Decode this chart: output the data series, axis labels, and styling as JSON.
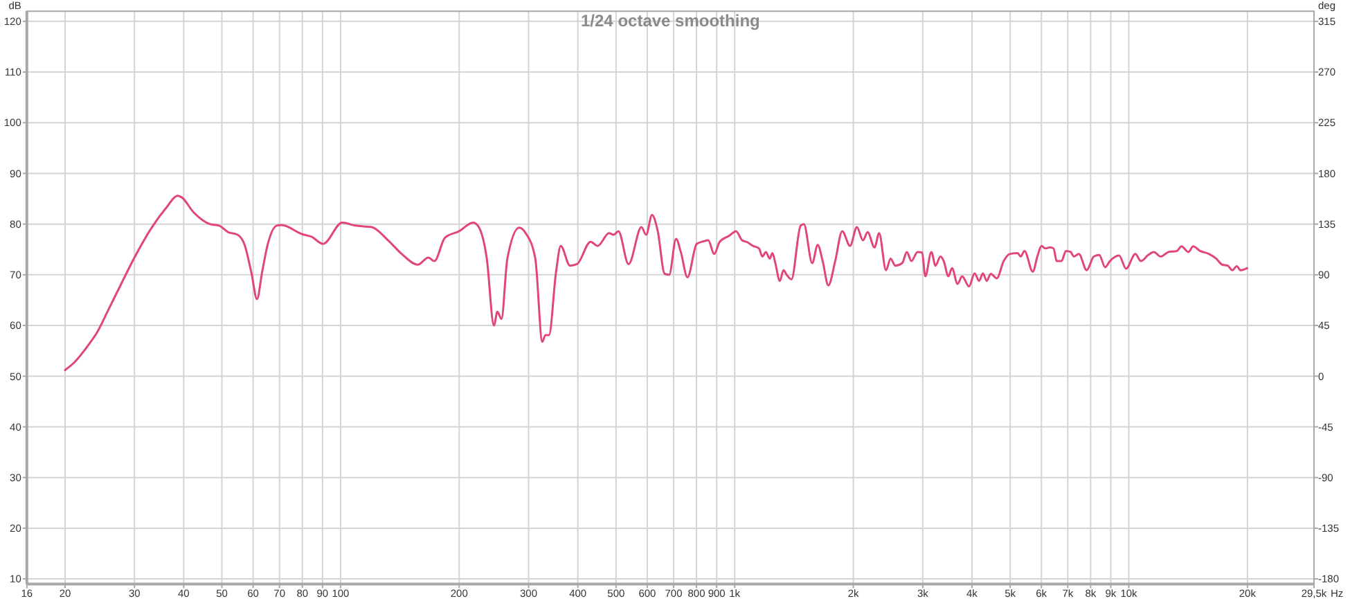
{
  "chart_data": {
    "type": "line",
    "title": "1/24 octave smoothing",
    "xlabel": "Hz",
    "ylabel": "dB",
    "y2label": "deg",
    "log": "x",
    "grid": true,
    "marker": "none",
    "line_style": "solid",
    "xlim": [
      16,
      29500
    ],
    "ylim": [
      9,
      122
    ],
    "y2lim": [
      -184.5,
      324
    ],
    "xticks": [
      16,
      20,
      30,
      40,
      50,
      60,
      70,
      80,
      90,
      100,
      200,
      300,
      400,
      500,
      600,
      700,
      800,
      900,
      {
        "value": 1000,
        "label": "1k"
      },
      {
        "value": 2000,
        "label": "2k"
      },
      {
        "value": 3000,
        "label": "3k"
      },
      {
        "value": 4000,
        "label": "4k"
      },
      {
        "value": 5000,
        "label": "5k"
      },
      {
        "value": 6000,
        "label": "6k"
      },
      {
        "value": 7000,
        "label": "7k"
      },
      {
        "value": 8000,
        "label": "8k"
      },
      {
        "value": 9000,
        "label": "9k"
      },
      {
        "value": 10000,
        "label": "10k"
      },
      {
        "value": 20000,
        "label": "20k"
      },
      {
        "value": 29500,
        "label": "29,5k"
      }
    ],
    "yticks": [
      10,
      20,
      30,
      40,
      50,
      60,
      70,
      80,
      90,
      100,
      110,
      120
    ],
    "y2ticks": [
      -180,
      -135,
      -90,
      -45,
      0,
      45,
      90,
      135,
      180,
      225,
      270,
      315
    ],
    "series": [
      {
        "color": "#e0457b",
        "x": [
          20,
          21.1,
          22.8,
          24.1,
          25.8,
          27.2,
          29.9,
          33.3,
          36.1,
          38.6,
          39.5,
          42.4,
          46.6,
          49.2,
          51.9,
          54.8,
          57.1,
          59.4,
          61.4,
          63.2,
          65.3,
          68.9,
          70.8,
          80,
          84.4,
          90.3,
          101,
          109,
          120,
          132,
          143,
          157,
          167,
          173,
          184,
          200,
          217,
          223,
          235,
          245,
          250,
          256,
          265,
          284,
          295,
          312,
          325,
          331,
          338,
          352,
          362,
          382,
          398,
          431,
          449,
          480,
          493,
          507,
          538,
          580,
          596,
          617,
          638,
          664,
          682,
          710,
          730,
          759,
          801,
          834,
          857,
          887,
          916,
          968,
          1008,
          1044,
          1078,
          1113,
          1153,
          1175,
          1200,
          1227,
          1247,
          1268,
          1302,
          1330,
          1355,
          1393,
          1470,
          1498,
          1573,
          1624,
          1672,
          1728,
          1799,
          1874,
          1962,
          2042,
          2116,
          2174,
          2264,
          2325,
          2421,
          2486,
          2556,
          2661,
          2734,
          2808,
          2910,
          2989,
          3045,
          3155,
          3232,
          3327,
          3392,
          3484,
          3560,
          3677,
          3776,
          3932,
          4061,
          4171,
          4264,
          4358,
          4465,
          4624,
          4814,
          4985,
          5220,
          5318,
          5436,
          5707,
          5860,
          6004,
          6137,
          6302,
          6440,
          6562,
          6745,
          6928,
          7115,
          7254,
          7468,
          7820,
          8148,
          8414,
          8710,
          8954,
          9448,
          9840,
          10390,
          10730,
          11200,
          11570,
          12050,
          12610,
          13240,
          13600,
          14160,
          14560,
          15160,
          15990,
          16650,
          17250,
          17820,
          18300,
          18790,
          19210,
          19950
        ],
        "values": [
          51.2,
          52.7,
          55.9,
          58.6,
          63.2,
          66.8,
          73.2,
          79.5,
          83.2,
          85.6,
          85.3,
          82.3,
          80.0,
          79.7,
          78.4,
          77.9,
          75.9,
          70.4,
          65.2,
          70.4,
          75.9,
          79.7,
          79.8,
          78.0,
          77.5,
          76.1,
          80.3,
          79.7,
          79.4,
          76.8,
          74.1,
          72.0,
          73.4,
          72.7,
          77.3,
          78.6,
          80.3,
          79.7,
          73.2,
          60.0,
          62.7,
          61.3,
          73.2,
          79.3,
          78.2,
          73.2,
          56.8,
          58.1,
          58.1,
          70.4,
          75.7,
          71.8,
          72.1,
          76.5,
          75.7,
          78.2,
          77.9,
          78.6,
          72.1,
          79.4,
          77.9,
          81.8,
          78.6,
          70.2,
          70.0,
          77.1,
          74.5,
          69.5,
          76.1,
          76.6,
          76.8,
          74.1,
          76.5,
          77.7,
          78.6,
          76.8,
          76.4,
          75.7,
          75.2,
          73.6,
          74.5,
          73.2,
          74.3,
          72.3,
          68.8,
          70.9,
          70.0,
          69.1,
          79.7,
          80.0,
          72.3,
          75.9,
          72.7,
          67.9,
          72.7,
          78.6,
          75.7,
          79.4,
          76.8,
          78.4,
          75.4,
          78.2,
          70.9,
          73.2,
          71.8,
          72.3,
          74.5,
          72.7,
          74.5,
          74.4,
          69.7,
          74.5,
          71.8,
          73.6,
          72.7,
          69.7,
          71.3,
          68.2,
          69.7,
          67.7,
          70.3,
          68.8,
          70.3,
          68.8,
          70.2,
          69.3,
          72.7,
          74.1,
          74.3,
          73.6,
          74.7,
          70.6,
          73.6,
          75.7,
          75.2,
          75.4,
          75.2,
          72.7,
          72.7,
          74.7,
          74.5,
          73.6,
          74.1,
          70.9,
          73.6,
          73.9,
          71.5,
          72.7,
          73.8,
          71.2,
          74.1,
          72.7,
          73.9,
          74.5,
          73.6,
          74.5,
          74.7,
          75.6,
          74.5,
          75.6,
          74.7,
          74.1,
          73.2,
          72.0,
          71.8,
          70.9,
          71.7,
          70.9,
          71.3
        ]
      }
    ]
  }
}
